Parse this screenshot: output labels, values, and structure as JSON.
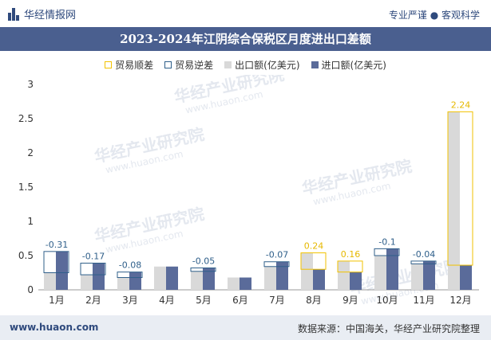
{
  "header": {
    "brand": "华经情报网",
    "tagline": "专业严谨 ● 客观科学"
  },
  "chart_data": {
    "type": "bar",
    "title": "2023-2024年江阴综合保税区月度进出口差额",
    "categories": [
      "1月",
      "2月",
      "3月",
      "4月",
      "5月",
      "6月",
      "7月",
      "8月",
      "9月",
      "10月",
      "11月",
      "12月"
    ],
    "series": [
      {
        "name": "出口额(亿美元)",
        "values": [
          0.25,
          0.22,
          0.18,
          0.34,
          0.27,
          0.18,
          0.34,
          0.54,
          0.42,
          0.5,
          0.38,
          2.6
        ]
      },
      {
        "name": "进口额(亿美元)",
        "values": [
          0.56,
          0.39,
          0.26,
          0.34,
          0.32,
          0.18,
          0.41,
          0.3,
          0.26,
          0.6,
          0.42,
          0.36
        ]
      }
    ],
    "balance": {
      "labels": [
        "-0.31",
        "-0.17",
        "-0.08",
        "",
        "-0.05",
        "",
        "-0.07",
        "0.24",
        "0.16",
        "-0.1",
        "-0.04",
        "2.24"
      ],
      "surplus_name": "贸易顺差",
      "deficit_name": "贸易逆差"
    },
    "ylim": [
      0,
      3
    ],
    "yticks": [
      "0",
      "0.5",
      "1",
      "1.5",
      "2",
      "2.5",
      "3"
    ],
    "colors": {
      "export": "#d9d9d9",
      "import": "#5a6b9a",
      "surplus": "#f2c200",
      "deficit": "#2f5f8a",
      "surplus_label": "#e6b800",
      "deficit_label": "#2f5f8a"
    },
    "legend_position": "top-center"
  },
  "watermark": "华经产业研究院",
  "watermark_url": "www.huaon.com",
  "footer": {
    "url": "www.huaon.com",
    "source": "数据来源：中国海关，华经产业研究院整理"
  }
}
